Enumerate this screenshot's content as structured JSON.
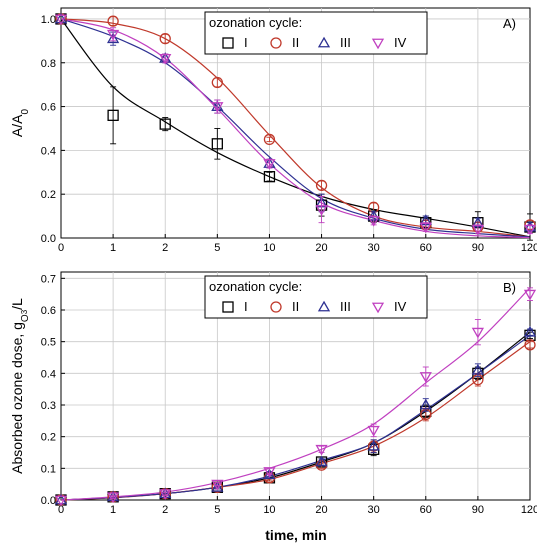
{
  "chart_data": [
    {
      "type": "scatter",
      "panel_label": "A)",
      "ylabel_main": "A/A",
      "ylabel_sub": "0",
      "xlabel": "",
      "categories": [
        "0",
        "1",
        "2",
        "5",
        "10",
        "20",
        "30",
        "60",
        "90",
        "120"
      ],
      "yticks": [
        "0.0",
        "0.2",
        "0.4",
        "0.6",
        "0.8",
        "1.0"
      ],
      "ylim": [
        0,
        1.05
      ],
      "grid": true,
      "legend": {
        "title": "ozonation cycle:",
        "placement": "top-right"
      },
      "colors": {
        "I": "#000000",
        "II": "#c0392b",
        "III": "#2e3192",
        "IV": "#c040c0"
      },
      "series": [
        {
          "name": "I",
          "marker": "square",
          "values": [
            1.0,
            0.56,
            0.52,
            0.43,
            0.28,
            0.15,
            0.1,
            0.07,
            0.07,
            0.05
          ],
          "errors": [
            0,
            0.13,
            0.03,
            0.07,
            0.02,
            0.05,
            0.03,
            0.03,
            0.05,
            0.06
          ],
          "fit": [
            1.0,
            0.69,
            0.53,
            0.39,
            0.28,
            0.19,
            0.13,
            0.09,
            0.05,
            0.005
          ]
        },
        {
          "name": "II",
          "marker": "circle",
          "values": [
            1.0,
            0.99,
            0.91,
            0.71,
            0.45,
            0.24,
            0.14,
            0.06,
            0.05,
            0.06
          ],
          "errors": [
            0,
            0.02,
            0.02,
            0.02,
            0.01,
            0.02,
            0.02,
            0.02,
            0.02,
            0.02
          ],
          "fit": [
            1.0,
            0.98,
            0.91,
            0.73,
            0.47,
            0.23,
            0.1,
            0.05,
            0.03,
            0.005
          ]
        },
        {
          "name": "III",
          "marker": "triangle-up",
          "values": [
            1.0,
            0.91,
            0.82,
            0.6,
            0.34,
            0.16,
            0.1,
            0.08,
            0.07,
            0.05
          ],
          "errors": [
            0,
            0.03,
            0.02,
            0.03,
            0.02,
            0.04,
            0.02,
            0.02,
            0.02,
            0.02
          ],
          "fit": [
            1.0,
            0.92,
            0.8,
            0.6,
            0.37,
            0.18,
            0.09,
            0.04,
            0.02,
            0.005
          ]
        },
        {
          "name": "IV",
          "marker": "triangle-down",
          "values": [
            1.0,
            0.93,
            0.82,
            0.6,
            0.34,
            0.13,
            0.08,
            0.05,
            0.04,
            0.04
          ],
          "errors": [
            0,
            0.03,
            0.02,
            0.03,
            0.02,
            0.06,
            0.02,
            0.02,
            0.02,
            0.02
          ],
          "fit": [
            1.0,
            0.95,
            0.82,
            0.59,
            0.34,
            0.16,
            0.08,
            0.03,
            0.01,
            0.002
          ]
        }
      ]
    },
    {
      "type": "scatter",
      "panel_label": "B)",
      "ylabel_main": "Absorbed ozone dose, g",
      "ylabel_sub": "O",
      "ylabel_sub2": "3",
      "ylabel_tail": "/L",
      "xlabel": "time, min",
      "categories": [
        "0",
        "1",
        "2",
        "5",
        "10",
        "20",
        "30",
        "60",
        "90",
        "120"
      ],
      "yticks": [
        "0.0",
        "0.1",
        "0.2",
        "0.3",
        "0.4",
        "0.5",
        "0.6",
        "0.7"
      ],
      "ylim": [
        0,
        0.72
      ],
      "grid": true,
      "legend": {
        "title": "ozonation cycle:",
        "placement": "top-center"
      },
      "colors": {
        "I": "#000000",
        "II": "#c0392b",
        "III": "#2e3192",
        "IV": "#c040c0"
      },
      "series": [
        {
          "name": "I",
          "marker": "square",
          "values": [
            0.0,
            0.01,
            0.02,
            0.04,
            0.07,
            0.12,
            0.16,
            0.28,
            0.4,
            0.52
          ],
          "errors": [
            0,
            0.005,
            0.005,
            0.005,
            0.01,
            0.01,
            0.02,
            0.02,
            0.02,
            0.01
          ],
          "fit": [
            0.0,
            0.008,
            0.02,
            0.04,
            0.07,
            0.12,
            0.18,
            0.28,
            0.4,
            0.53
          ]
        },
        {
          "name": "II",
          "marker": "circle",
          "values": [
            0.0,
            0.01,
            0.02,
            0.04,
            0.07,
            0.11,
            0.17,
            0.27,
            0.38,
            0.49
          ],
          "errors": [
            0,
            0.005,
            0.005,
            0.005,
            0.01,
            0.01,
            0.02,
            0.02,
            0.02,
            0.01
          ],
          "fit": [
            0.0,
            0.007,
            0.02,
            0.04,
            0.065,
            0.115,
            0.17,
            0.26,
            0.38,
            0.5
          ]
        },
        {
          "name": "III",
          "marker": "triangle-up",
          "values": [
            0.0,
            0.01,
            0.02,
            0.04,
            0.08,
            0.12,
            0.17,
            0.3,
            0.41,
            0.53
          ],
          "errors": [
            0,
            0.005,
            0.005,
            0.005,
            0.01,
            0.01,
            0.02,
            0.02,
            0.02,
            0.01
          ],
          "fit": [
            0.0,
            0.008,
            0.02,
            0.04,
            0.075,
            0.125,
            0.18,
            0.285,
            0.4,
            0.52
          ]
        },
        {
          "name": "IV",
          "marker": "triangle-down",
          "values": [
            0.0,
            0.01,
            0.02,
            0.05,
            0.09,
            0.16,
            0.22,
            0.39,
            0.53,
            0.65
          ],
          "errors": [
            0,
            0.005,
            0.005,
            0.005,
            0.01,
            0.01,
            0.02,
            0.03,
            0.04,
            0.02
          ],
          "fit": [
            0.0,
            0.01,
            0.025,
            0.055,
            0.1,
            0.16,
            0.24,
            0.37,
            0.5,
            0.67
          ]
        }
      ]
    }
  ]
}
